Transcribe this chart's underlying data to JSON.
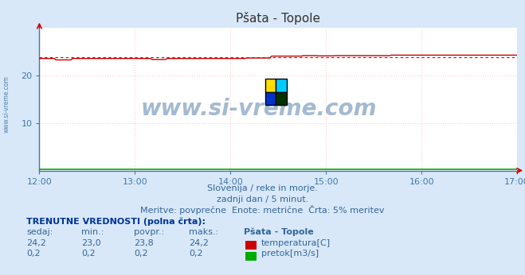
{
  "title": "Pšata - Topole",
  "bg_color": "#d8e8f8",
  "plot_bg_color": "#ffffff",
  "grid_color": "#ffcccc",
  "x_start": 0,
  "x_end": 300,
  "x_ticks": [
    0,
    60,
    120,
    180,
    240,
    300
  ],
  "x_tick_labels": [
    "12:00",
    "13:00",
    "14:00",
    "15:00",
    "16:00",
    "17:00"
  ],
  "y_lim": [
    0,
    30
  ],
  "y_ticks": [
    10,
    20
  ],
  "temp_color": "#cc0000",
  "flow_color": "#00aa00",
  "temp_avg": 23.8,
  "subtitle1": "Slovenija / reke in morje.",
  "subtitle2": "zadnji dan / 5 minut.",
  "subtitle3": "Meritve: povprečne  Enote: metrične  Črta: 5% meritev",
  "label_head": "TRENUTNE VREDNOSTI (polna črta):",
  "col_sedaj": "sedaj:",
  "col_min": "min.:",
  "col_povpr": "povpr.:",
  "col_maks": "maks.:",
  "col_station": "Pšata - Topole",
  "legend_temp": "temperatura[C]",
  "legend_flow": "pretok[m3/s]",
  "watermark": "www.si-vreme.com",
  "side_label": "www.si-vreme.com",
  "tick_color": "#4477aa",
  "text_color": "#336699",
  "header_color": "#003399"
}
